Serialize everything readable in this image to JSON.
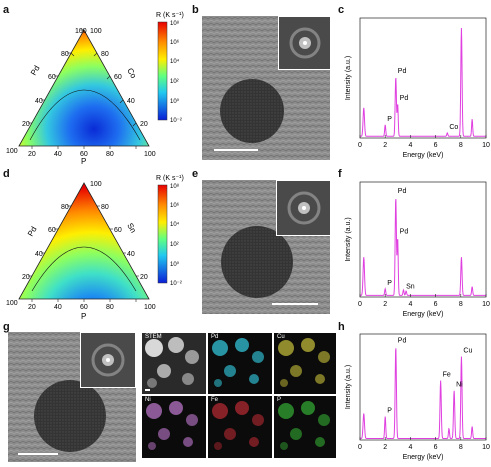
{
  "panels": {
    "a": "a",
    "b": "b",
    "c": "c",
    "d": "d",
    "e": "e",
    "f": "f",
    "g": "g",
    "h": "h"
  },
  "ternary_a": {
    "left_label": "Pd",
    "right_label": "Co",
    "bottom_label": "P",
    "left_ticks": [
      "100",
      "80",
      "60",
      "40",
      "20",
      "0"
    ],
    "right_ticks": [
      "100",
      "80",
      "60",
      "40",
      "20",
      "0"
    ],
    "bottom_ticks": [
      "100",
      "0",
      "20",
      "40",
      "60",
      "80",
      "100"
    ],
    "colorbar_title": "R (K s⁻¹)",
    "colorbar_ticks": [
      "10⁸",
      "10⁶",
      "10⁴",
      "10²",
      "10⁰",
      "10⁻²"
    ],
    "colors": [
      "#0a2bd6",
      "#1e8ef0",
      "#3fe0c8",
      "#8cff60",
      "#ffee00",
      "#ff8a00",
      "#e80000"
    ]
  },
  "ternary_d": {
    "left_label": "Pd",
    "right_label": "Sn",
    "bottom_label": "P",
    "left_ticks": [
      "100",
      "80",
      "60",
      "40",
      "20",
      "0"
    ],
    "right_ticks": [
      "100",
      "80",
      "60",
      "40",
      "20",
      "0"
    ],
    "bottom_ticks": [
      "100",
      "0",
      "20",
      "40",
      "60",
      "80",
      "100"
    ],
    "colorbar_title": "R (K s⁻¹)",
    "colorbar_ticks": [
      "10⁸",
      "10⁶",
      "10⁴",
      "10²",
      "10⁰",
      "10⁻²"
    ]
  },
  "stem_g": {
    "labels": [
      "STEM",
      "Pd",
      "Cu",
      "Ni",
      "Fe",
      "P"
    ],
    "colors": [
      "#ffffff",
      "#2fb7c9",
      "#c9c23a",
      "#c27ad0",
      "#d8303a",
      "#3cc93c"
    ]
  },
  "chart_data": [
    {
      "id": "c",
      "type": "line",
      "xlabel": "Energy (keV)",
      "ylabel": "Intensity (a.u.)",
      "xlim": [
        0,
        10
      ],
      "xticks": [
        0,
        2,
        4,
        6,
        8,
        10
      ],
      "color": "#e040e0",
      "peaks": [
        {
          "x": 0.3,
          "h": 0.25,
          "w": 0.08
        },
        {
          "x": 2.0,
          "h": 0.1,
          "w": 0.06
        },
        {
          "x": 2.84,
          "h": 0.52,
          "w": 0.07
        },
        {
          "x": 2.99,
          "h": 0.28,
          "w": 0.06
        },
        {
          "x": 6.93,
          "h": 0.03,
          "w": 0.06
        },
        {
          "x": 8.05,
          "h": 0.95,
          "w": 0.07
        },
        {
          "x": 8.9,
          "h": 0.15,
          "w": 0.06
        }
      ],
      "annotations": [
        {
          "text": "Pd",
          "x": 2.84
        },
        {
          "text": "Pd",
          "x": 2.99
        },
        {
          "text": "P",
          "x": 2.0
        },
        {
          "text": "Co",
          "x": 6.93
        }
      ]
    },
    {
      "id": "f",
      "type": "line",
      "xlabel": "Energy (keV)",
      "ylabel": "Intensity (a.u.)",
      "xlim": [
        0,
        10
      ],
      "xticks": [
        0,
        2,
        4,
        6,
        8,
        10
      ],
      "color": "#e040e0",
      "peaks": [
        {
          "x": 0.3,
          "h": 0.35,
          "w": 0.08
        },
        {
          "x": 2.0,
          "h": 0.06,
          "w": 0.06
        },
        {
          "x": 2.84,
          "h": 0.9,
          "w": 0.07
        },
        {
          "x": 2.99,
          "h": 0.52,
          "w": 0.06
        },
        {
          "x": 3.45,
          "h": 0.05,
          "w": 0.06
        },
        {
          "x": 3.66,
          "h": 0.04,
          "w": 0.06
        },
        {
          "x": 8.05,
          "h": 0.35,
          "w": 0.07
        },
        {
          "x": 8.9,
          "h": 0.08,
          "w": 0.06
        }
      ],
      "annotations": [
        {
          "text": "Pd",
          "x": 2.84
        },
        {
          "text": "Pd",
          "x": 2.99
        },
        {
          "text": "P",
          "x": 2.0
        },
        {
          "text": "Sn",
          "x": 3.5
        }
      ]
    },
    {
      "id": "h",
      "type": "line",
      "xlabel": "Energy (keV)",
      "ylabel": "Intensity (a.u.)",
      "xlim": [
        0,
        10
      ],
      "xticks": [
        0,
        2,
        4,
        6,
        8,
        10
      ],
      "color": "#e040e0",
      "peaks": [
        {
          "x": 0.3,
          "h": 0.25,
          "w": 0.08
        },
        {
          "x": 2.0,
          "h": 0.22,
          "w": 0.06
        },
        {
          "x": 2.84,
          "h": 0.92,
          "w": 0.07
        },
        {
          "x": 6.4,
          "h": 0.58,
          "w": 0.07
        },
        {
          "x": 7.06,
          "h": 0.1,
          "w": 0.06
        },
        {
          "x": 7.47,
          "h": 0.48,
          "w": 0.07
        },
        {
          "x": 8.05,
          "h": 0.82,
          "w": 0.07
        },
        {
          "x": 8.9,
          "h": 0.12,
          "w": 0.06
        }
      ],
      "annotations": [
        {
          "text": "Pd",
          "x": 2.84
        },
        {
          "text": "Cu",
          "x": 8.05
        },
        {
          "text": "Fe",
          "x": 6.4
        },
        {
          "text": "Ni",
          "x": 7.47
        },
        {
          "text": "P",
          "x": 2.0
        }
      ]
    }
  ]
}
